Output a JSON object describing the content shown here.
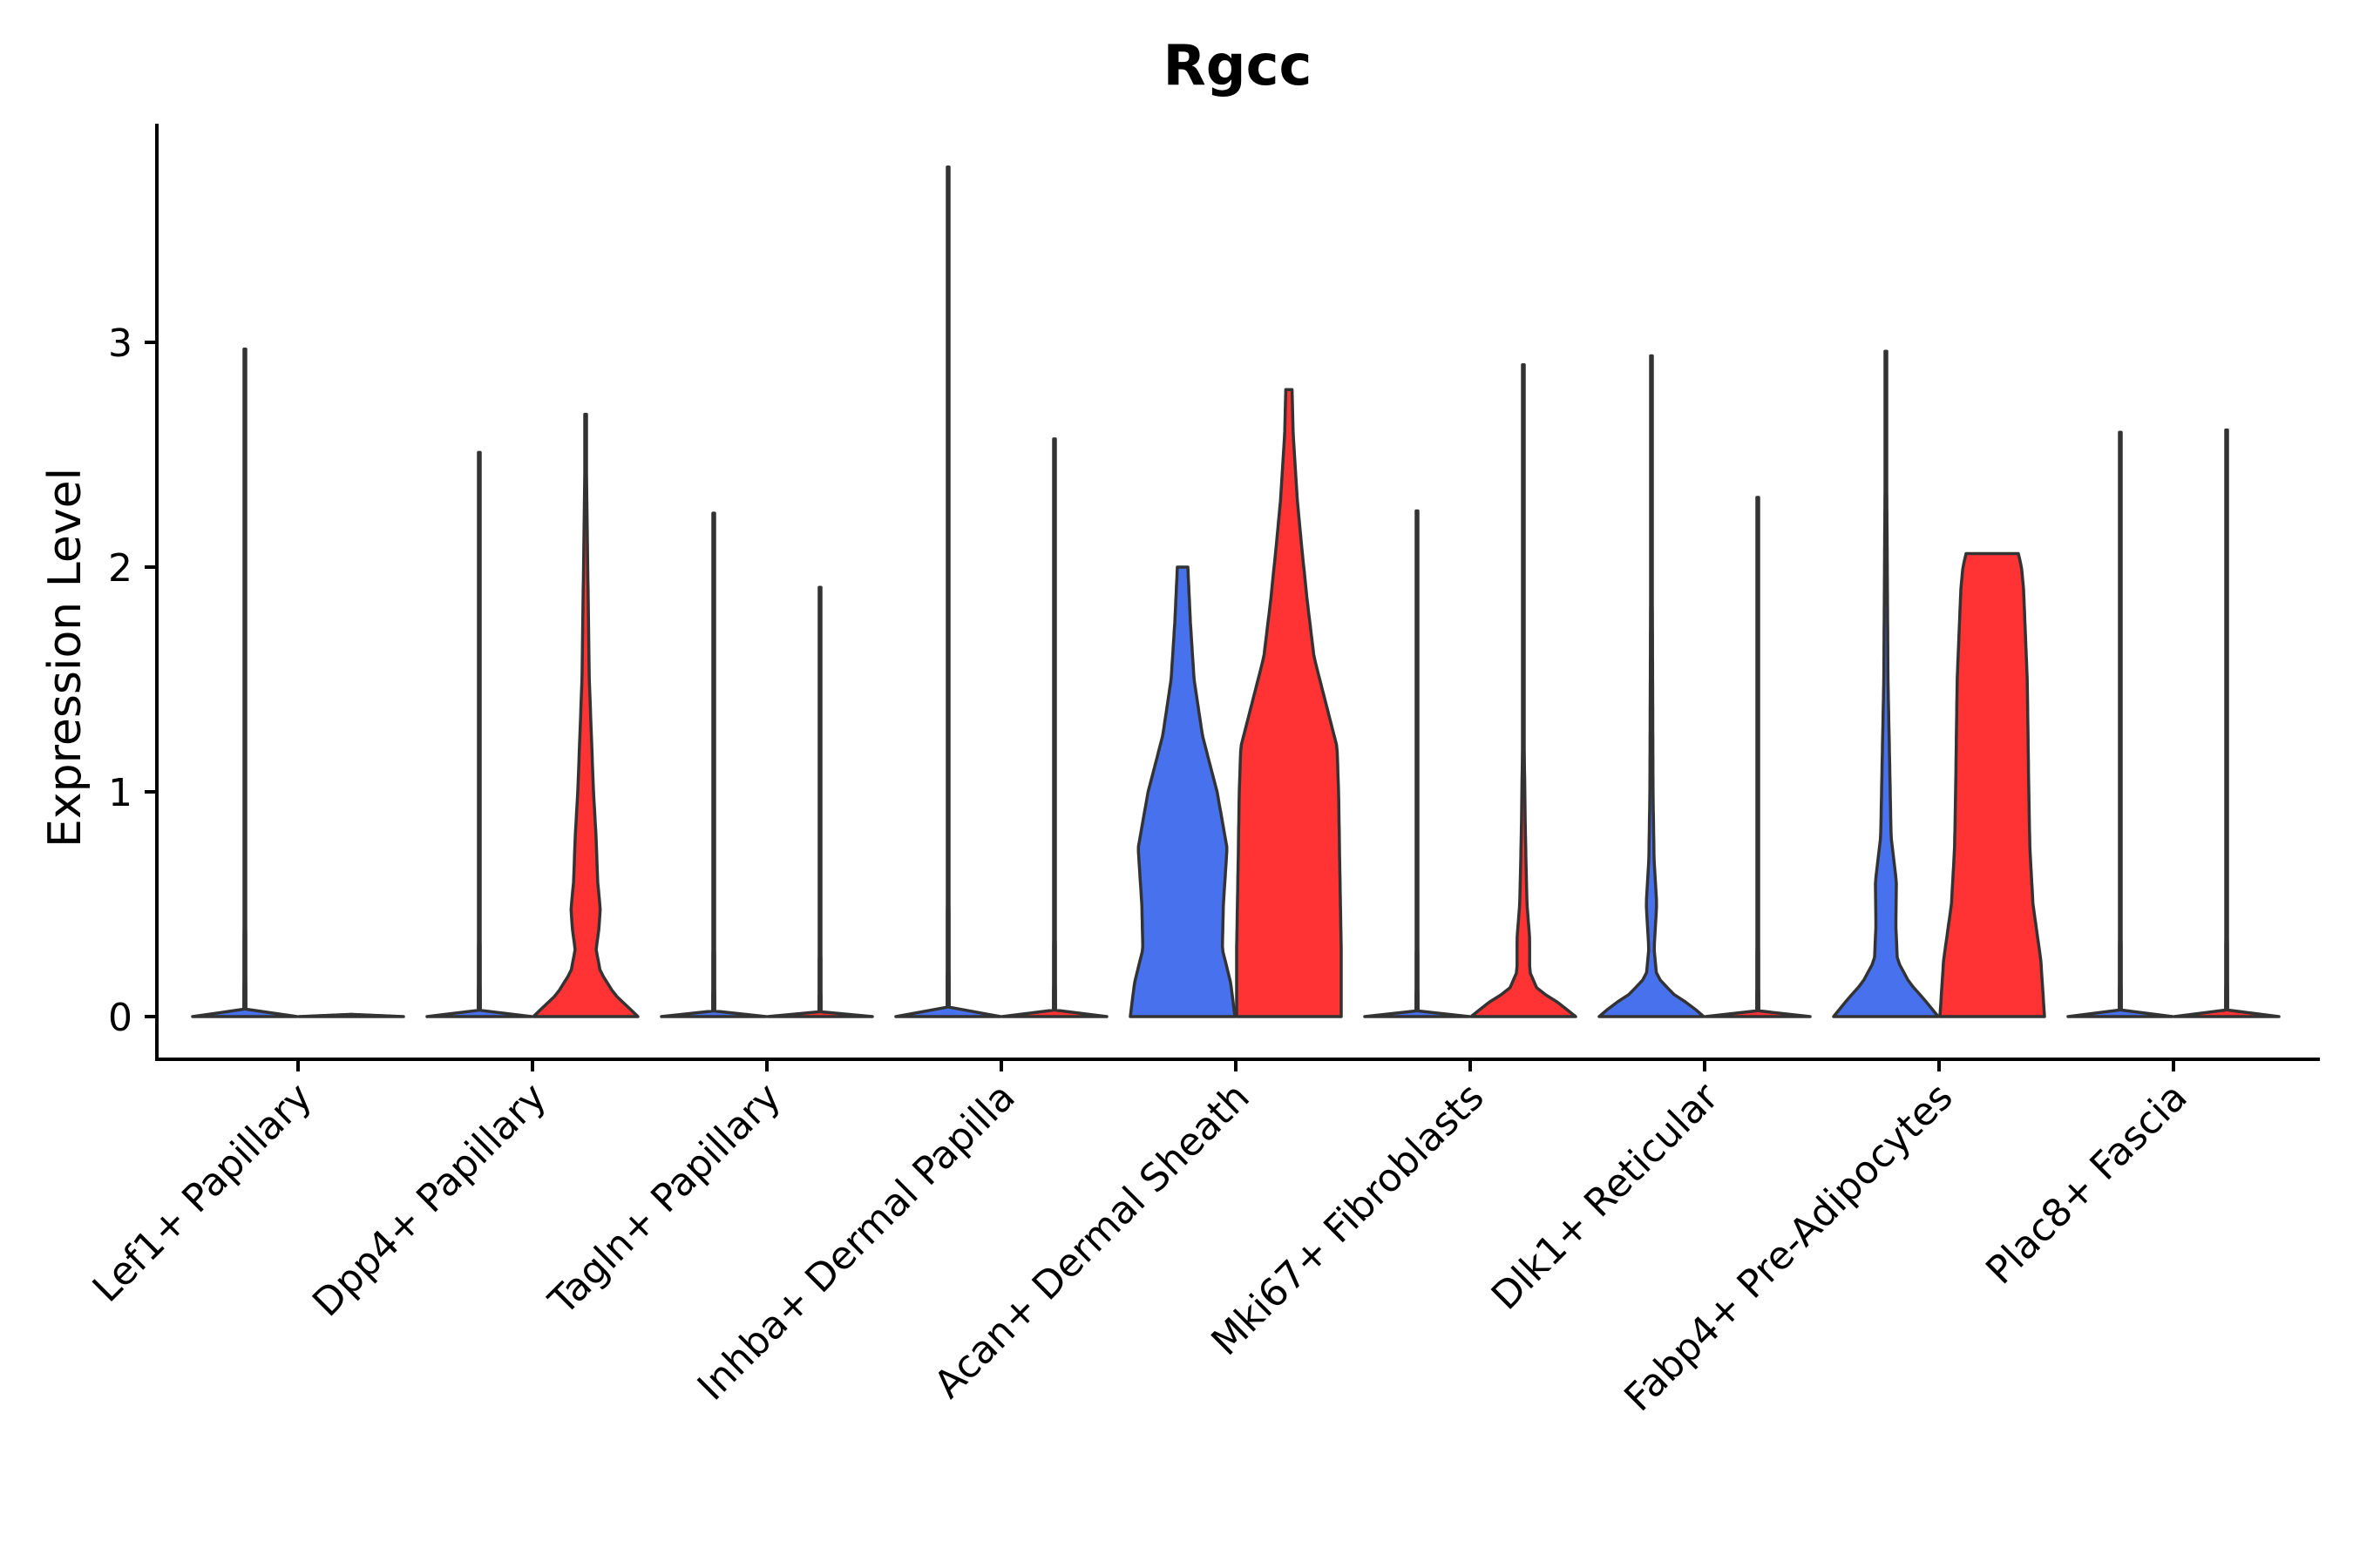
{
  "chart_data": {
    "type": "violin",
    "title": "Rgcc",
    "xlabel": "",
    "ylabel": "Expression Level",
    "ylim": [
      -0.19,
      3.95
    ],
    "yticks": [
      0,
      1,
      2,
      3
    ],
    "grid": false,
    "legend": "none",
    "colors": {
      "group1": "#4871EE",
      "group2": "#FF3333"
    },
    "categories": [
      "Lef1+ Papillary",
      "Dpp4+ Papillary",
      "Tagln+ Papillary",
      "Inhba+ Dermal Papilla",
      "Acan+ Dermal Sheath",
      "Mki67+ Fibroblasts",
      "Dlk1+ Reticular",
      "Fabp4+ Pre-Adipocytes",
      "Plac8+ Fascia"
    ],
    "series": [
      {
        "name": "group1",
        "color": "#4871EE",
        "values": [
          {
            "max": 2.97,
            "profile": [
              [
                0,
                1.0
              ],
              [
                0.02,
                0.02
              ],
              [
                2.97,
                0.0
              ]
            ]
          },
          {
            "max": 2.51,
            "profile": [
              [
                0,
                1.0
              ],
              [
                0.02,
                0.02
              ],
              [
                2.51,
                0.0
              ]
            ]
          },
          {
            "max": 2.24,
            "profile": [
              [
                0,
                1.0
              ],
              [
                0.02,
                0.02
              ],
              [
                2.24,
                0.0
              ]
            ]
          },
          {
            "max": 3.78,
            "profile": [
              [
                0,
                1.0
              ],
              [
                0.02,
                0.02
              ],
              [
                3.78,
                0.0
              ]
            ]
          },
          {
            "max": 2.0,
            "profile": [
              [
                0,
                1.0
              ],
              [
                0.15,
                0.92
              ],
              [
                0.3,
                0.76
              ],
              [
                0.5,
                0.78
              ],
              [
                0.75,
                0.85
              ],
              [
                1.0,
                0.66
              ],
              [
                1.25,
                0.38
              ],
              [
                1.5,
                0.22
              ],
              [
                1.75,
                0.15
              ],
              [
                1.95,
                0.11
              ],
              [
                2.0,
                0.1
              ]
            ]
          },
          {
            "max": 2.25,
            "profile": [
              [
                0,
                1.0
              ],
              [
                0.02,
                0.02
              ],
              [
                2.25,
                0.0
              ]
            ]
          },
          {
            "max": 2.94,
            "profile": [
              [
                0,
                1.0
              ],
              [
                0.05,
                0.75
              ],
              [
                0.1,
                0.42
              ],
              [
                0.18,
                0.1
              ],
              [
                0.3,
                0.05
              ],
              [
                0.5,
                0.1
              ],
              [
                0.7,
                0.05
              ],
              [
                1.0,
                0.03
              ],
              [
                2.94,
                0.0
              ]
            ]
          },
          {
            "max": 2.96,
            "profile": [
              [
                0,
                1.0
              ],
              [
                0.08,
                0.72
              ],
              [
                0.15,
                0.45
              ],
              [
                0.25,
                0.22
              ],
              [
                0.4,
                0.19
              ],
              [
                0.6,
                0.2
              ],
              [
                0.8,
                0.1
              ],
              [
                1.5,
                0.04
              ],
              [
                2.96,
                0.0
              ]
            ]
          },
          {
            "max": 2.6,
            "profile": [
              [
                0,
                1.0
              ],
              [
                0.02,
                0.02
              ],
              [
                2.6,
                0.0
              ]
            ]
          }
        ]
      },
      {
        "name": "group2",
        "color": "#FF3333",
        "values": [
          {
            "max": 0.0,
            "profile": [
              [
                0,
                1.0
              ],
              [
                0.01,
                0.0
              ]
            ]
          },
          {
            "max": 2.68,
            "profile": [
              [
                0,
                1.0
              ],
              [
                0.1,
                0.55
              ],
              [
                0.2,
                0.28
              ],
              [
                0.3,
                0.2
              ],
              [
                0.38,
                0.25
              ],
              [
                0.48,
                0.28
              ],
              [
                0.6,
                0.23
              ],
              [
                0.8,
                0.2
              ],
              [
                1.0,
                0.15
              ],
              [
                1.5,
                0.07
              ],
              [
                2.68,
                0.0
              ]
            ]
          },
          {
            "max": 1.91,
            "profile": [
              [
                0,
                1.0
              ],
              [
                0.02,
                0.02
              ],
              [
                1.91,
                0.0
              ]
            ]
          },
          {
            "max": 2.57,
            "profile": [
              [
                0,
                1.0
              ],
              [
                0.02,
                0.02
              ],
              [
                2.57,
                0.0
              ]
            ]
          },
          {
            "max": 2.79,
            "profile": [
              [
                0,
                1.0
              ],
              [
                0.3,
                1.0
              ],
              [
                0.7,
                0.97
              ],
              [
                1.0,
                0.95
              ],
              [
                1.2,
                0.92
              ],
              [
                1.4,
                0.7
              ],
              [
                1.6,
                0.48
              ],
              [
                1.85,
                0.35
              ],
              [
                2.1,
                0.24
              ],
              [
                2.3,
                0.16
              ],
              [
                2.6,
                0.08
              ],
              [
                2.79,
                0.06
              ]
            ]
          },
          {
            "max": 2.9,
            "profile": [
              [
                0,
                1.0
              ],
              [
                0.06,
                0.68
              ],
              [
                0.12,
                0.27
              ],
              [
                0.2,
                0.12
              ],
              [
                0.35,
                0.12
              ],
              [
                0.5,
                0.07
              ],
              [
                0.8,
                0.04
              ],
              [
                1.3,
                0.01
              ],
              [
                2.9,
                0.0
              ]
            ]
          },
          {
            "max": 2.31,
            "profile": [
              [
                0,
                1.0
              ],
              [
                0.02,
                0.02
              ],
              [
                2.31,
                0.0
              ]
            ]
          },
          {
            "max": 2.06,
            "profile": [
              [
                0,
                1.0
              ],
              [
                0.25,
                0.93
              ],
              [
                0.5,
                0.78
              ],
              [
                0.75,
                0.72
              ],
              [
                1.0,
                0.7
              ],
              [
                1.5,
                0.67
              ],
              [
                1.9,
                0.6
              ],
              [
                2.0,
                0.56
              ],
              [
                2.06,
                0.5
              ]
            ]
          },
          {
            "max": 2.61,
            "profile": [
              [
                0,
                1.0
              ],
              [
                0.02,
                0.02
              ],
              [
                2.61,
                0.0
              ]
            ]
          }
        ]
      }
    ]
  }
}
